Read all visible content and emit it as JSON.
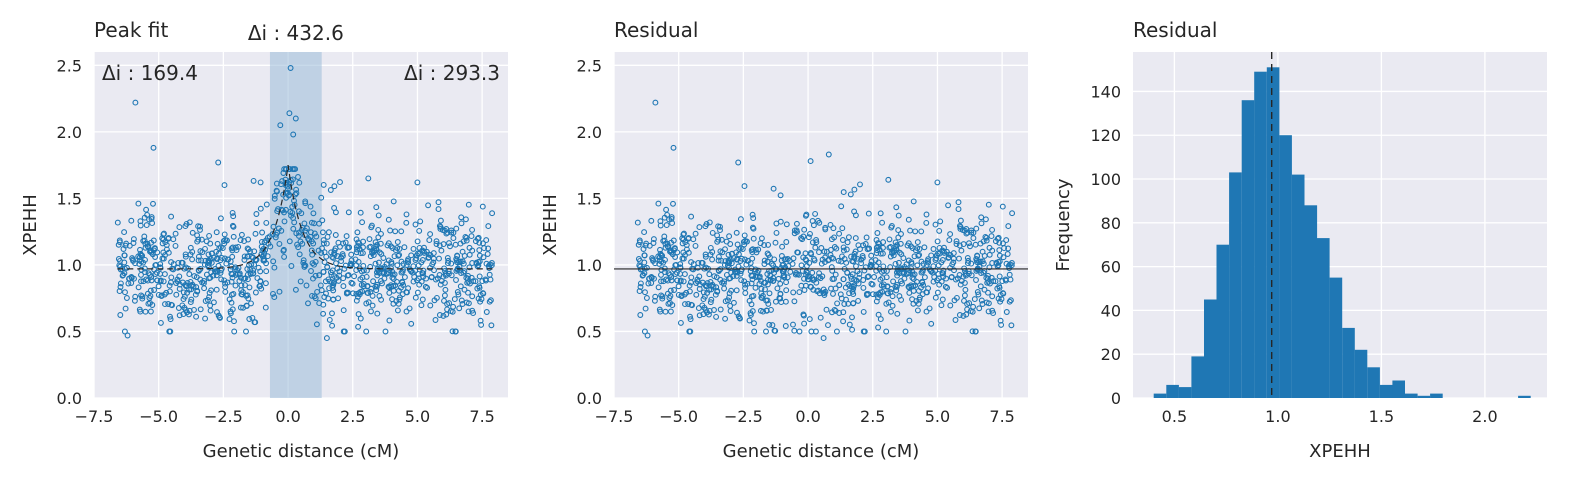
{
  "chart_data": [
    {
      "type": "scatter",
      "title": "Peak fit",
      "xlabel": "Genetic distance (cM)",
      "ylabel": "XPEHH",
      "xlim": [
        -7.5,
        8.5
      ],
      "ylim": [
        0.0,
        2.6
      ],
      "xticks": [
        "−7.5",
        "−5.0",
        "−2.5",
        "0.0",
        "2.5",
        "5.0",
        "7.5"
      ],
      "xtick_values": [
        -7.5,
        -5.0,
        -2.5,
        0.0,
        2.5,
        5.0,
        7.5
      ],
      "yticks": [
        "0.0",
        "0.5",
        "1.0",
        "1.5",
        "2.0",
        "2.5"
      ],
      "ytick_values": [
        0.0,
        0.5,
        1.0,
        1.5,
        2.0,
        2.5
      ],
      "grid": true,
      "x_range": [
        -6.6,
        7.9
      ],
      "n_points": 1100,
      "baseline": 0.97,
      "highlight_band": [
        -0.7,
        1.3
      ],
      "fit_peak": {
        "x": 0.0,
        "y": 1.75
      },
      "annotations": [
        {
          "text": "Δi : 169.4",
          "position": "top-left"
        },
        {
          "text": "Δi : 432.6",
          "position": "above band"
        },
        {
          "text": "Δi : 293.3",
          "position": "top-right"
        }
      ],
      "outliers": [
        {
          "x": -5.9,
          "y": 2.22
        },
        {
          "x": -5.2,
          "y": 1.88
        },
        {
          "x": -2.7,
          "y": 1.77
        },
        {
          "x": 0.1,
          "y": 2.48
        },
        {
          "x": 0.05,
          "y": 2.14
        },
        {
          "x": -0.3,
          "y": 2.05
        },
        {
          "x": 0.3,
          "y": 2.1
        },
        {
          "x": 0.2,
          "y": 1.98
        },
        {
          "x": 3.1,
          "y": 1.65
        },
        {
          "x": 5.0,
          "y": 1.62
        },
        {
          "x": -6.2,
          "y": 0.47
        },
        {
          "x": 1.5,
          "y": 0.45
        }
      ]
    },
    {
      "type": "scatter",
      "title": "Residual",
      "xlabel": "Genetic distance (cM)",
      "ylabel": "XPEHH",
      "xlim": [
        -7.5,
        8.5
      ],
      "ylim": [
        0.0,
        2.6
      ],
      "xticks": [
        "−7.5",
        "−5.0",
        "−2.5",
        "0.0",
        "2.5",
        "5.0",
        "7.5"
      ],
      "xtick_values": [
        -7.5,
        -5.0,
        -2.5,
        0.0,
        2.5,
        5.0,
        7.5
      ],
      "yticks": [
        "0.0",
        "0.5",
        "1.0",
        "1.5",
        "2.0",
        "2.5"
      ],
      "ytick_values": [
        0.0,
        0.5,
        1.0,
        1.5,
        2.0,
        2.5
      ],
      "grid": true,
      "x_range": [
        -6.6,
        7.9
      ],
      "n_points": 1100,
      "baseline": 0.97,
      "outliers": [
        {
          "x": -5.9,
          "y": 2.22
        },
        {
          "x": -5.2,
          "y": 1.88
        },
        {
          "x": -2.7,
          "y": 1.77
        },
        {
          "x": 0.8,
          "y": 1.83
        },
        {
          "x": 0.1,
          "y": 1.78
        },
        {
          "x": 3.1,
          "y": 1.64
        },
        {
          "x": 5.0,
          "y": 1.62
        },
        {
          "x": -6.2,
          "y": 0.47
        },
        {
          "x": 0.6,
          "y": 0.45
        }
      ]
    },
    {
      "type": "bar",
      "subtype": "histogram",
      "title": "Residual",
      "xlabel": "XPEHH",
      "ylabel": "Frequency",
      "xlim": [
        0.3,
        2.3
      ],
      "ylim": [
        0,
        158
      ],
      "xticks": [
        "0.5",
        "1.0",
        "1.5",
        "2.0"
      ],
      "xtick_values": [
        0.5,
        1.0,
        1.5,
        2.0
      ],
      "yticks": [
        "0",
        "20",
        "40",
        "60",
        "80",
        "100",
        "120",
        "140"
      ],
      "ytick_values": [
        0,
        20,
        40,
        60,
        80,
        100,
        120,
        140
      ],
      "grid": true,
      "bin_start": 0.4,
      "bin_width": 0.0607,
      "counts": [
        2,
        6,
        5,
        19,
        45,
        70,
        103,
        136,
        149,
        151,
        120,
        102,
        88,
        73,
        55,
        32,
        22,
        14,
        6,
        8,
        2,
        1,
        2,
        0,
        0,
        0,
        0,
        0,
        0,
        1
      ],
      "mean_line": 0.97
    }
  ]
}
